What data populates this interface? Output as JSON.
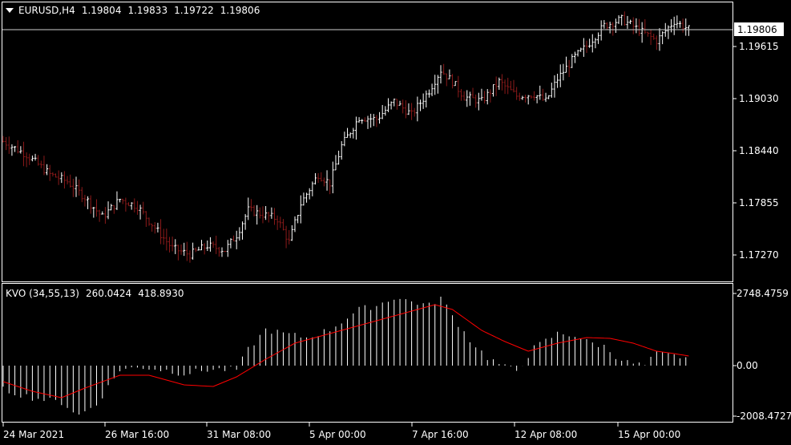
{
  "header": {
    "symbol": "EURUSD,H4",
    "open": "1.19804",
    "high": "1.19833",
    "low": "1.19722",
    "close": "1.19806"
  },
  "price_axis": {
    "ticks": [
      "1.19615",
      "1.19030",
      "1.18440",
      "1.17855",
      "1.17270"
    ],
    "current_price": "1.19806"
  },
  "indicator": {
    "name": "KVO (34,55,13)",
    "value1": "260.0424",
    "value2": "418.8930",
    "axis_ticks": [
      "2748.4759",
      "0.00",
      "-2008.4727"
    ]
  },
  "time_axis": {
    "labels": [
      "24 Mar 2021",
      "26 Mar 16:00",
      "31 Mar 08:00",
      "5 Apr 00:00",
      "7 Apr 16:00",
      "12 Apr 08:00",
      "15 Apr 00:00"
    ]
  },
  "colors": {
    "background": "#000000",
    "bull_bar": "#ffffff",
    "bear_bar": "#8b1a1a",
    "signal_line": "#ff0000",
    "histogram": "#ffffff"
  },
  "chart_data": [
    {
      "type": "ohlc",
      "series": [
        {
          "name": "EURUSD,H4",
          "note": "price path sampled from chart",
          "anchors": [
            [
              0,
              1.1855
            ],
            [
              8,
              1.184
            ],
            [
              16,
              1.1818
            ],
            [
              22,
              1.181
            ],
            [
              28,
              1.1792
            ],
            [
              34,
              1.177
            ],
            [
              40,
              1.179
            ],
            [
              46,
              1.1782
            ],
            [
              52,
              1.1758
            ],
            [
              58,
              1.1735
            ],
            [
              64,
              1.1728
            ],
            [
              70,
              1.1738
            ],
            [
              76,
              1.1733
            ],
            [
              80,
              1.175
            ],
            [
              84,
              1.1778
            ],
            [
              90,
              1.1772
            ],
            [
              94,
              1.1768
            ],
            [
              98,
              1.1742
            ],
            [
              102,
              1.1785
            ],
            [
              108,
              1.1818
            ],
            [
              112,
              1.1808
            ],
            [
              116,
              1.185
            ],
            [
              122,
              1.1882
            ],
            [
              128,
              1.188
            ],
            [
              134,
              1.19
            ],
            [
              140,
              1.1885
            ],
            [
              146,
              1.1912
            ],
            [
              150,
              1.1935
            ],
            [
              154,
              1.1922
            ],
            [
              158,
              1.1905
            ],
            [
              164,
              1.19
            ],
            [
              170,
              1.1922
            ],
            [
              176,
              1.1906
            ],
            [
              182,
              1.1908
            ],
            [
              186,
              1.19
            ],
            [
              190,
              1.1925
            ],
            [
              196,
              1.195
            ],
            [
              200,
              1.1962
            ],
            [
              206,
              1.1985
            ],
            [
              212,
              1.1992
            ],
            [
              218,
              1.198
            ],
            [
              224,
              1.1968
            ],
            [
              230,
              1.199
            ],
            [
              235,
              1.1981
            ]
          ]
        }
      ]
    },
    {
      "type": "bar",
      "name": "KVO (34,55,13)",
      "series": [
        {
          "name": "KVO",
          "values_note": "histogram + signal line sampled"
        }
      ],
      "ylim": [
        -2008.4727,
        2748.4759
      ]
    }
  ]
}
